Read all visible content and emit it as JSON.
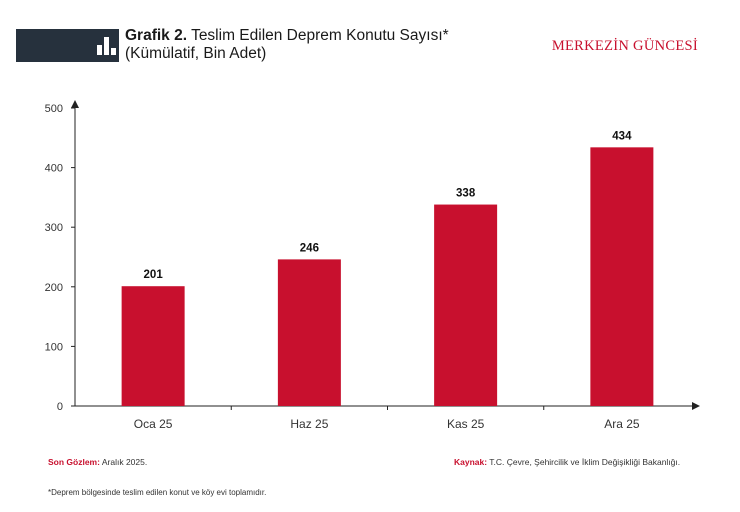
{
  "header": {
    "title_bold": "Grafik 2.",
    "title_rest": "Teslim Edilen Deprem Konutu Sayısı*",
    "subtitle": "(Kümülatif, Bin Adet)",
    "brand": "MERKEZİN GÜNCESİ",
    "badge_icon": "bar-chart-icon"
  },
  "chart_data": {
    "type": "bar",
    "categories": [
      "Oca 25",
      "Haz 25",
      "Kas 25",
      "Ara 25"
    ],
    "values": [
      201,
      246,
      338,
      434
    ],
    "ylim": [
      0,
      500
    ],
    "yticks": [
      0,
      100,
      200,
      300,
      400,
      500
    ],
    "bar_color": "#c8102e",
    "grid": false,
    "title": "",
    "xlabel": "",
    "ylabel": ""
  },
  "footer": {
    "last_obs_label": "Son Gözlem:",
    "last_obs_value": "Aralık 2025.",
    "source_label": "Kaynak:",
    "source_value": "T.C. Çevre, Şehircilik ve İklim Değişikliği Bakanlığı.",
    "note": "*Deprem bölgesinde teslim edilen konut ve köy evi toplamıdır."
  }
}
